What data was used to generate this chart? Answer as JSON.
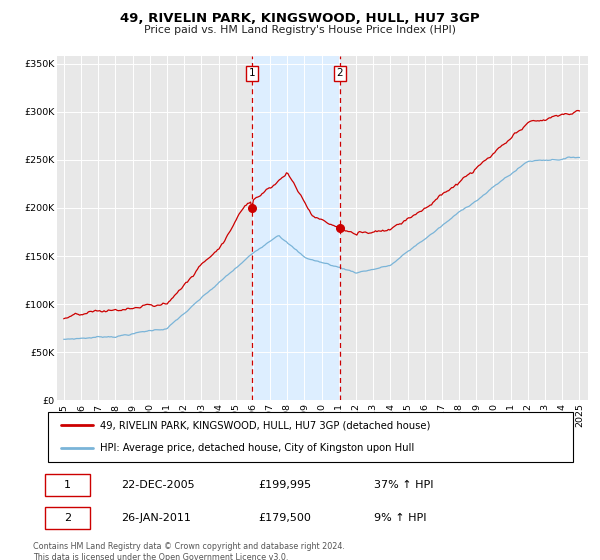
{
  "title": "49, RIVELIN PARK, KINGSWOOD, HULL, HU7 3GP",
  "subtitle": "Price paid vs. HM Land Registry's House Price Index (HPI)",
  "legend_line1": "49, RIVELIN PARK, KINGSWOOD, HULL, HU7 3GP (detached house)",
  "legend_line2": "HPI: Average price, detached house, City of Kingston upon Hull",
  "transaction1_label": "1",
  "transaction1_date": "22-DEC-2005",
  "transaction1_price": "£199,995",
  "transaction1_hpi": "37% ↑ HPI",
  "transaction2_label": "2",
  "transaction2_date": "26-JAN-2011",
  "transaction2_price": "£179,500",
  "transaction2_hpi": "9% ↑ HPI",
  "footer": "Contains HM Land Registry data © Crown copyright and database right 2024.\nThis data is licensed under the Open Government Licence v3.0.",
  "hpi_color": "#7ab4d8",
  "price_color": "#cc0000",
  "highlight_color": "#ddeeff",
  "vline_color": "#cc0000",
  "ylim_min": 0,
  "ylim_max": 350000,
  "yticks": [
    0,
    50000,
    100000,
    150000,
    200000,
    250000,
    300000,
    350000
  ],
  "transaction1_year": 2005.97,
  "transaction1_price_val": 199995,
  "transaction2_year": 2011.07,
  "transaction2_price_val": 179500,
  "bg_color": "#e8e8e8"
}
